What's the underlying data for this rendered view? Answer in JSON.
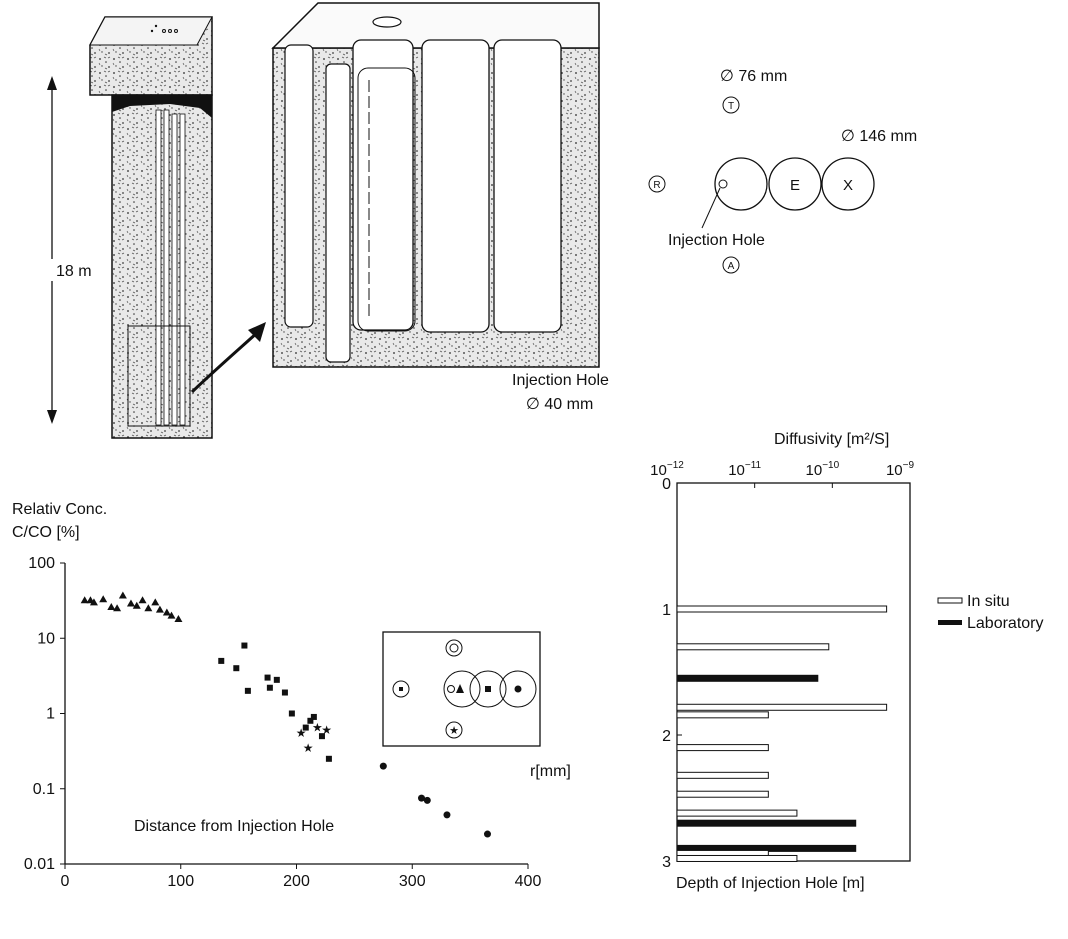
{
  "top": {
    "depth_label": "18 m",
    "injection_hole_label": "Injection Hole",
    "injection_hole_diameter": "∅ 40 mm",
    "plan": {
      "diam_small": "∅ 76 mm",
      "diam_large": "∅ 146 mm",
      "letters": {
        "T": "T",
        "R": "R",
        "A": "A",
        "E": "E",
        "X": "X"
      },
      "injection_label": "Injection Hole"
    }
  },
  "chart_data": [
    {
      "type": "scatter",
      "title": "",
      "ylabel_line1": "Relativ Conc.",
      "ylabel_line2": "C/CO [%]",
      "xlabel": "Distance from Injection Hole",
      "x_unit_label": "r[mm]",
      "xlim": [
        0,
        400
      ],
      "ylim": [
        0.01,
        100
      ],
      "yscale": "log",
      "x_ticks": [
        "0",
        "100",
        "200",
        "300",
        "400"
      ],
      "y_ticks": [
        "0.01",
        "0.1",
        "1",
        "10",
        "100"
      ],
      "series": [
        {
          "marker": "triangle",
          "points": [
            [
              17,
              32
            ],
            [
              22,
              32
            ],
            [
              25,
              30
            ],
            [
              33,
              33
            ],
            [
              40,
              26
            ],
            [
              45,
              25
            ],
            [
              50,
              37
            ],
            [
              57,
              29
            ],
            [
              62,
              27
            ],
            [
              67,
              32
            ],
            [
              72,
              25
            ],
            [
              78,
              30
            ],
            [
              82,
              24
            ],
            [
              88,
              22
            ],
            [
              92,
              20
            ],
            [
              98,
              18
            ]
          ]
        },
        {
          "marker": "square",
          "points": [
            [
              135,
              5
            ],
            [
              148,
              4
            ],
            [
              155,
              8
            ],
            [
              158,
              2
            ],
            [
              175,
              3
            ],
            [
              177,
              2.2
            ],
            [
              183,
              2.8
            ],
            [
              190,
              1.9
            ],
            [
              196,
              1
            ],
            [
              208,
              0.65
            ],
            [
              212,
              0.8
            ],
            [
              215,
              0.9
            ],
            [
              222,
              0.5
            ],
            [
              228,
              0.25
            ]
          ]
        },
        {
          "marker": "star",
          "points": [
            [
              204,
              0.55
            ],
            [
              210,
              0.35
            ],
            [
              218,
              0.65
            ],
            [
              226,
              0.6
            ]
          ]
        },
        {
          "marker": "circle",
          "points": [
            [
              275,
              0.2
            ],
            [
              308,
              0.075
            ],
            [
              313,
              0.07
            ],
            [
              330,
              0.045
            ],
            [
              365,
              0.025
            ]
          ]
        }
      ]
    },
    {
      "type": "bar",
      "orientation": "horizontal",
      "title": "",
      "xlabel": "Diffusivity [m²/S]",
      "ylabel": "Depth of Injection Hole [m]",
      "xscale": "log",
      "x_exponents": [
        -12,
        -11,
        -10,
        -9
      ],
      "y_ticks": [
        "0",
        "1",
        "2",
        "3"
      ],
      "ylim": [
        0,
        3
      ],
      "legend": [
        "In situ",
        "Laboratory"
      ],
      "bars": [
        {
          "depth": 1.0,
          "value": 5e-10,
          "series": "In situ"
        },
        {
          "depth": 1.3,
          "value": 9e-11,
          "series": "In situ"
        },
        {
          "depth": 1.55,
          "value": 6.5e-11,
          "series": "Laboratory"
        },
        {
          "depth": 1.78,
          "value": 5e-10,
          "series": "In situ"
        },
        {
          "depth": 1.84,
          "value": 1.5e-11,
          "series": "In situ"
        },
        {
          "depth": 2.1,
          "value": 1.5e-11,
          "series": "In situ"
        },
        {
          "depth": 2.32,
          "value": 1.5e-11,
          "series": "In situ"
        },
        {
          "depth": 2.47,
          "value": 1.5e-11,
          "series": "In situ"
        },
        {
          "depth": 2.62,
          "value": 3.5e-11,
          "series": "In situ"
        },
        {
          "depth": 2.7,
          "value": 2e-10,
          "series": "Laboratory"
        },
        {
          "depth": 2.9,
          "value": 2e-10,
          "series": "Laboratory"
        },
        {
          "depth": 2.94,
          "value": 1.5e-11,
          "series": "In situ"
        },
        {
          "depth": 2.98,
          "value": 3.5e-11,
          "series": "In situ"
        }
      ]
    }
  ]
}
